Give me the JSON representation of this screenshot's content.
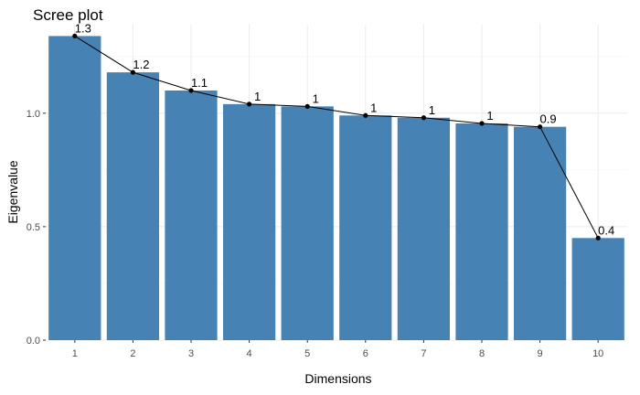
{
  "chart_data": {
    "type": "bar",
    "title": "Scree plot",
    "xlabel": "Dimensions",
    "ylabel": "Eigenvalue",
    "categories": [
      "1",
      "2",
      "3",
      "4",
      "5",
      "6",
      "7",
      "8",
      "9",
      "10"
    ],
    "values": [
      1.34,
      1.18,
      1.1,
      1.04,
      1.03,
      0.99,
      0.98,
      0.955,
      0.94,
      0.45
    ],
    "data_labels": [
      "1.3",
      "1.2",
      "1.1",
      "1",
      "1",
      "1",
      "1",
      "1",
      "0.9",
      "0.4"
    ],
    "ylim": [
      0,
      1.39
    ],
    "yticks": [
      0.0,
      0.5,
      1.0
    ],
    "ytick_labels": [
      "0.0",
      "0.5",
      "1.0"
    ],
    "grid": true,
    "overlay": "line with points connecting bar tops",
    "colors": {
      "bar": "#4682b4",
      "line": "#000000",
      "grid_major": "#ebebeb",
      "grid_minor": "#f5f5f5"
    }
  }
}
